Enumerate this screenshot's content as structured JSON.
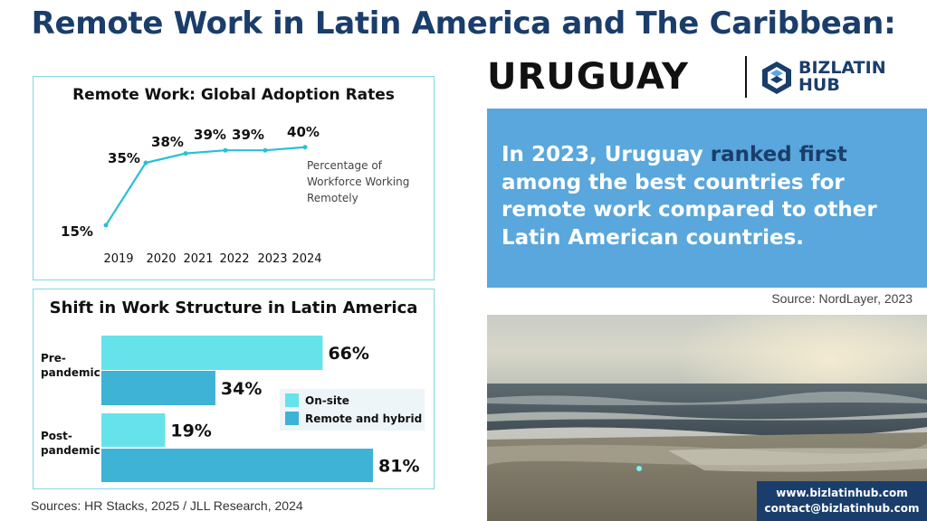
{
  "title": "Remote Work in Latin America and The Caribbean:",
  "country": "URUGUAY",
  "logo": {
    "icon": "bizlatinhub-logo-icon",
    "line1": "BIZLATIN",
    "line2": "HUB",
    "color": "#1a3d6b"
  },
  "callout": {
    "before": "In 2023, Uruguay ",
    "highlight": "ranked first",
    "after": " among the best countries for remote work compared to other Latin American countries.",
    "bg": "#59a7dc"
  },
  "source_right": "Source:  NordLayer, 2023",
  "sources_left": "Sources: HR Stacks, 2025 /  JLL Research, 2024",
  "contact": {
    "website": "www.bizlatinhub.com",
    "email": "contact@bizlatinhub.com"
  },
  "colors": {
    "line": "#29c0d6",
    "onsite": "#66e3ea",
    "remote": "#3eb3d6",
    "title": "#1a3d6b"
  },
  "chart_data": [
    {
      "type": "line",
      "title": "Remote Work: Global Adoption Rates",
      "x": [
        "2019",
        "2020",
        "2021",
        "2022",
        "2023",
        "2024"
      ],
      "values": [
        15,
        35,
        38,
        39,
        39,
        40
      ],
      "labels": [
        "15%",
        "35%",
        "38%",
        "39%",
        "39%",
        "40%"
      ],
      "annotation": [
        "Percentage of",
        "Workforce Working",
        "Remotely"
      ],
      "grid": false
    },
    {
      "type": "bar",
      "orientation": "horizontal",
      "title": "Shift in Work Structure in Latin America",
      "groups": [
        {
          "label": [
            "Pre-",
            "pandemic"
          ],
          "values": [
            66,
            34
          ],
          "labels": [
            "66%",
            "34%"
          ]
        },
        {
          "label": [
            "Post-",
            "pandemic"
          ],
          "values": [
            19,
            81
          ],
          "labels": [
            "19%",
            "81%"
          ]
        }
      ],
      "series": [
        {
          "name": "On-site",
          "color": "#66e3ea"
        },
        {
          "name": "Remote and hybrid",
          "color": "#3eb3d6"
        }
      ],
      "xlim": [
        0,
        100
      ],
      "legend": "right"
    }
  ]
}
